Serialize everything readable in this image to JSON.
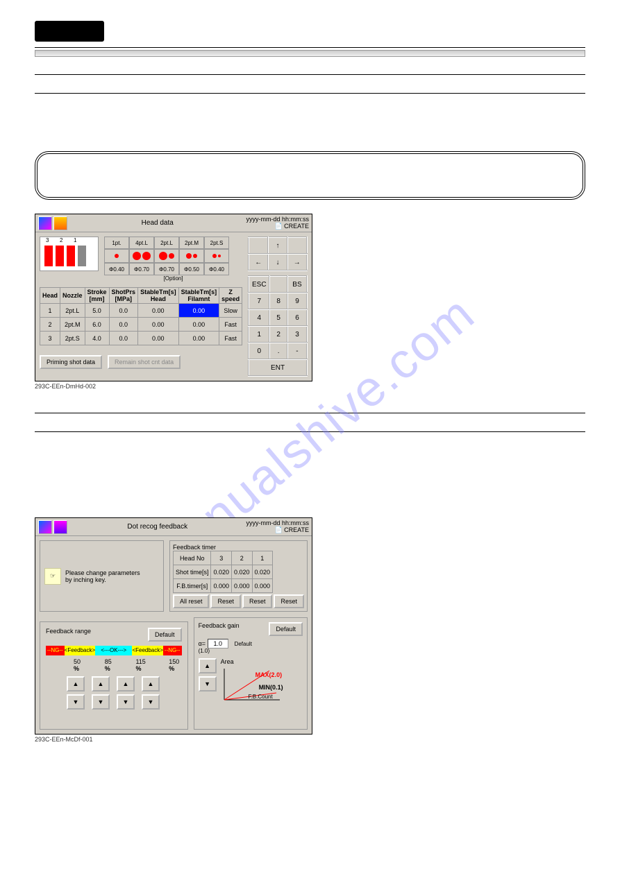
{
  "watermark": "manualshive.com",
  "dialog1": {
    "title": "Head data",
    "timestamp": "yyyy-mm-dd  hh:mm:ss",
    "mode": "CREATE",
    "head_labels": [
      "3",
      "2",
      "1"
    ],
    "nozzle_types": [
      "1pt.",
      "4pt.L",
      "2pt.L",
      "2pt.M",
      "2pt.S"
    ],
    "phi_row": [
      "Φ0.40",
      "Φ0.70",
      "Φ0.70",
      "Φ0.50",
      "Φ0.40"
    ],
    "option_label": "[Option]",
    "table": {
      "headers": [
        "Head",
        "Nozzle",
        "Stroke\n[mm]",
        "ShotPrs\n[MPa]",
        "StableTm[s]\nHead",
        "StableTm[s]\nFilamnt",
        "Z\nspeed"
      ],
      "rows": [
        [
          "1",
          "2pt.L",
          "5.0",
          "0.0",
          "0.00",
          "0.00",
          "Slow"
        ],
        [
          "2",
          "2pt.M",
          "6.0",
          "0.0",
          "0.00",
          "0.00",
          "Fast"
        ],
        [
          "3",
          "2pt.S",
          "4.0",
          "0.0",
          "0.00",
          "0.00",
          "Fast"
        ]
      ],
      "selected": {
        "r": 0,
        "c": 5
      }
    },
    "btn_priming": "Priming shot data",
    "btn_remain": "Remain shot cnt data",
    "keypad": {
      "esc": "ESC",
      "bs": "BS",
      "ent": "ENT",
      "keys": [
        [
          "7",
          "8",
          "9"
        ],
        [
          "4",
          "5",
          "6"
        ],
        [
          "1",
          "2",
          "3"
        ],
        [
          "0",
          ".",
          "-"
        ]
      ],
      "arrows": {
        "up": "↑",
        "down": "↓",
        "left": "←",
        "right": "→"
      }
    },
    "caption": "293C-EEn-DmHd-002"
  },
  "dialog2": {
    "title": "Dot recog feedback",
    "timestamp": "yyyy-mm-dd  hh:mm:ss",
    "mode": "CREATE",
    "hint": "Please change parameters\nby inching key.",
    "timer": {
      "title": "Feedback timer",
      "head_no": "Head No",
      "shot": "Shot time[s]",
      "fb": "F.B.timer[s]",
      "cols": [
        "3",
        "2",
        "1"
      ],
      "shot_vals": [
        "0.020",
        "0.020",
        "0.020"
      ],
      "fb_vals": [
        "0.000",
        "0.000",
        "0.000"
      ],
      "all_reset": "All reset",
      "reset": "Reset"
    },
    "range": {
      "title": "Feedback range",
      "default": "Default",
      "labels": {
        "ng": "--NG--",
        "fb": "<Feedback>",
        "ok": "<---OK--->"
      },
      "pcts": [
        "50",
        "85",
        "115",
        "150"
      ],
      "pct_sym": "%"
    },
    "gain": {
      "title": "Feedback gain",
      "default": "Default",
      "alpha": "α=",
      "alpha_val": "1.0",
      "def_label": "Default\n(1.0)",
      "area": "Area",
      "max": "MAX(2.0)",
      "min": "MIN(0.1)",
      "count": "F.B.Count"
    },
    "caption": "293C-EEn-McDf-001"
  }
}
